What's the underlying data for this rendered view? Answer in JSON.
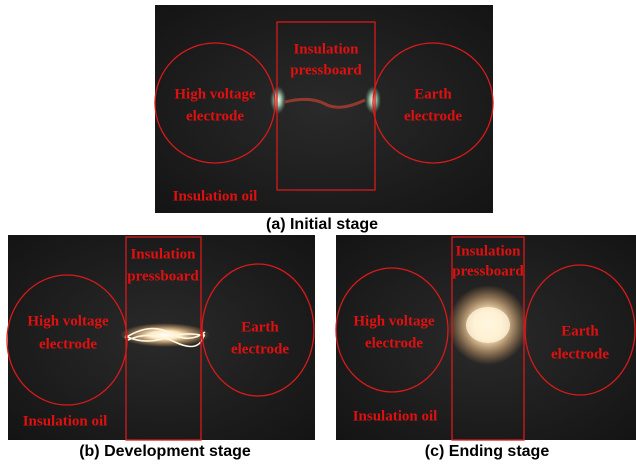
{
  "panels": [
    {
      "caption": "(a) Initial stage",
      "labels": [
        [
          "High voltage",
          "electrode"
        ],
        [
          "Insulation",
          "pressboard"
        ],
        [
          "Earth",
          "electrode"
        ],
        [
          "Insulation oil"
        ]
      ]
    },
    {
      "caption": "(b) Development stage",
      "labels": [
        [
          "High voltage",
          "electrode"
        ],
        [
          "Insulation",
          "pressboard"
        ],
        [
          "Earth",
          "electrode"
        ],
        [
          "Insulation oil"
        ]
      ]
    },
    {
      "caption": "(c) Ending stage",
      "labels": [
        [
          "High voltage",
          "electrode"
        ],
        [
          "Insulation",
          "pressboard"
        ],
        [
          "Earth",
          "electrode"
        ],
        [
          "Insulation oil"
        ]
      ]
    }
  ]
}
